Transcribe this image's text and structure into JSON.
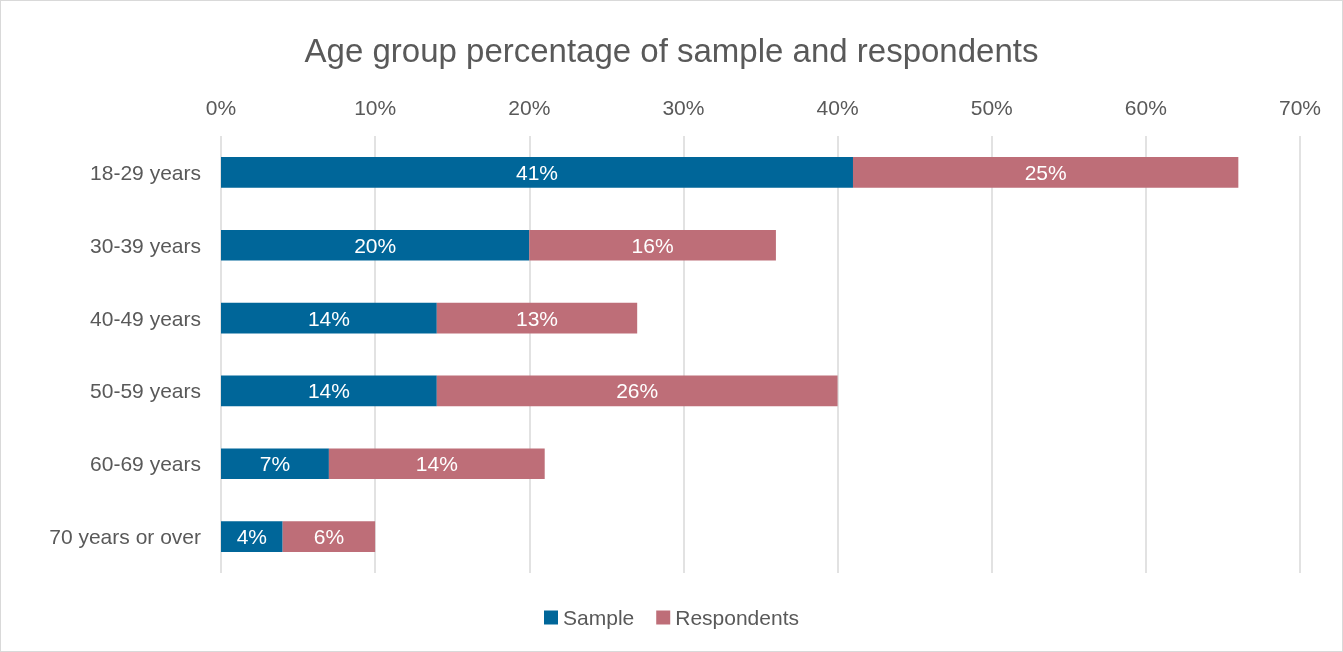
{
  "chart_data": {
    "type": "bar",
    "title": "Age group percentage of sample and respondents",
    "orientation": "horizontal",
    "stacked": true,
    "categories": [
      "18-29 years",
      "30-39 years",
      "40-49 years",
      "50-59 years",
      "60-69 years",
      "70 years or over"
    ],
    "series": [
      {
        "name": "Sample",
        "color": "#006699",
        "values": [
          41,
          20,
          14,
          14,
          7,
          4
        ],
        "value_labels": [
          "41%",
          "20%",
          "14%",
          "14%",
          "7%",
          "4%"
        ]
      },
      {
        "name": "Respondents",
        "color": "#be6e78",
        "values": [
          25,
          16,
          13,
          26,
          14,
          6
        ],
        "value_labels": [
          "25%",
          "16%",
          "13%",
          "26%",
          "14%",
          "6%"
        ]
      }
    ],
    "xlim": [
      0,
      70
    ],
    "xticks": [
      {
        "value": 0,
        "label": "0%"
      },
      {
        "value": 10,
        "label": "10%"
      },
      {
        "value": 20,
        "label": "20%"
      },
      {
        "value": 30,
        "label": "30%"
      },
      {
        "value": 40,
        "label": "40%"
      },
      {
        "value": 50,
        "label": "50%"
      },
      {
        "value": 60,
        "label": "60%"
      },
      {
        "value": 70,
        "label": "70%"
      }
    ],
    "grid": "x",
    "legend": "bottom"
  }
}
